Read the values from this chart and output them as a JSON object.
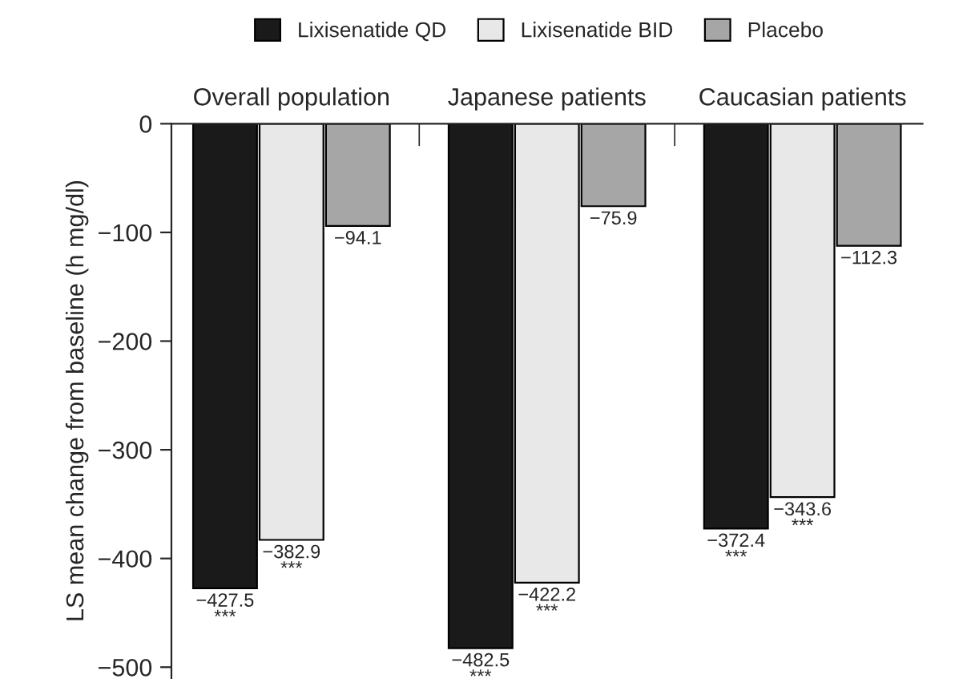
{
  "chart_data": {
    "type": "bar",
    "ylabel": "LS mean change from baseline (h mg/dl)",
    "categories": [
      "Overall population",
      "Japanese patients",
      "Caucasian patients"
    ],
    "series": [
      {
        "name": "Lixisenatide QD",
        "color": "#1a1a1a",
        "values": [
          -427.5,
          -482.5,
          -372.4
        ],
        "value_labels": [
          "−427.5\n***",
          "−482.5\n***",
          "−372.4\n***"
        ]
      },
      {
        "name": "Lixisenatide BID",
        "color": "#e8e8e8",
        "values": [
          -382.9,
          -422.2,
          -343.6
        ],
        "value_labels": [
          "−382.9\n***",
          "−422.2\n***",
          "−343.6\n***"
        ]
      },
      {
        "name": "Placebo",
        "color": "#a6a6a6",
        "values": [
          -94.1,
          -75.9,
          -112.3
        ],
        "value_labels": [
          "−94.1",
          "−75.9",
          "−112.3"
        ]
      }
    ],
    "ylim": [
      -510,
      0
    ],
    "yticks": [
      {
        "value": 0,
        "label": "0"
      },
      {
        "value": -100,
        "label": "−100"
      },
      {
        "value": -200,
        "label": "−200"
      },
      {
        "value": -300,
        "label": "−300"
      },
      {
        "value": -400,
        "label": "−400"
      },
      {
        "value": -500,
        "label": "−500"
      }
    ],
    "legend": "top",
    "grid": false
  }
}
